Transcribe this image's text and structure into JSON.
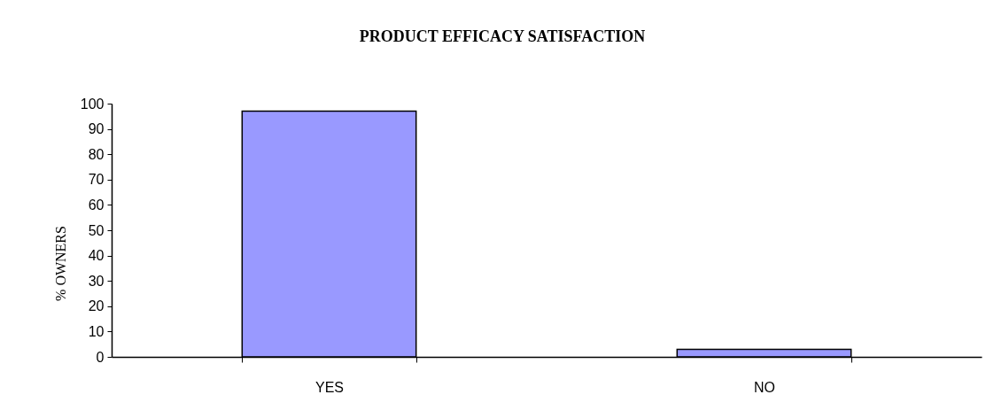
{
  "chart_data": {
    "type": "bar",
    "title": "PRODUCT EFFICACY SATISFACTION",
    "ylabel": "% OWNERS",
    "categories": [
      "YES",
      "NO"
    ],
    "values": [
      97,
      3
    ],
    "color": "#9999ff",
    "ylim": [
      0,
      100
    ],
    "yticks": [
      0,
      10,
      20,
      30,
      40,
      50,
      60,
      70,
      80,
      90,
      100
    ]
  }
}
